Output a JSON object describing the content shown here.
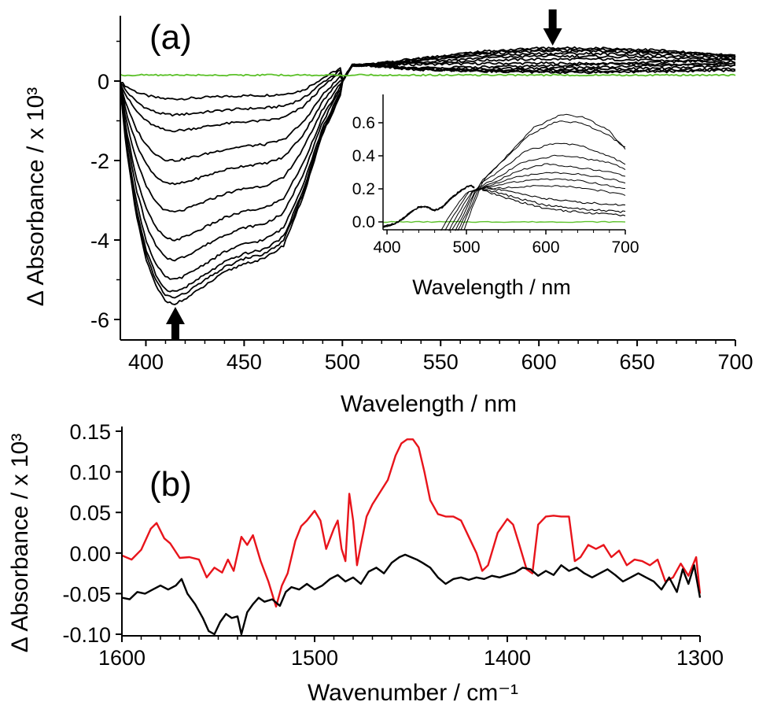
{
  "chart_data": [
    {
      "panel_label": "(a)",
      "type": "line",
      "xlabel": "Wavelength / nm",
      "ylabel": "Δ Absorbance / x 10³",
      "xlim": [
        387,
        700
      ],
      "ylim": [
        -6.5,
        1.1
      ],
      "xticks": [
        400,
        450,
        500,
        550,
        600,
        650,
        700
      ],
      "yticks": [
        0,
        -2,
        -4,
        -6
      ],
      "colors": {
        "traces": "#000000",
        "reference": "#5cc12a",
        "arrows": "#000000"
      },
      "annotations": [
        {
          "type": "arrow",
          "direction": "down",
          "x": 607,
          "meaning": "decrease"
        },
        {
          "type": "arrow",
          "direction": "up",
          "x": 415,
          "meaning": "recovery"
        }
      ],
      "trace_model": {
        "x": [
          387,
          390,
          395,
          400,
          405,
          410,
          415,
          420,
          430,
          440,
          450,
          460,
          470,
          480,
          490,
          500,
          510,
          520,
          540,
          560,
          580,
          600,
          620,
          640,
          660,
          680,
          700
        ],
        "unit_shape": [
          0.03,
          0.3,
          0.6,
          0.8,
          0.92,
          0.99,
          1.0,
          0.98,
          0.92,
          0.86,
          0.82,
          0.8,
          0.74,
          0.52,
          0.24,
          0.05,
          0.0,
          0.0,
          0.0,
          0.0,
          0.0,
          0.0,
          0.0,
          0.0,
          0.0,
          0.0,
          0.0
        ],
        "bleach_depths": [
          0.45,
          0.85,
          1.25,
          2.0,
          2.6,
          3.3,
          4.0,
          4.5,
          5.0,
          5.3,
          5.45,
          5.6
        ],
        "long_wavelength_x": [
          510,
          540,
          570,
          600,
          630,
          660,
          700
        ],
        "long_wavelength_levels": [
          [
            0.4,
            0.42,
            0.44,
            0.45,
            0.44,
            0.42,
            0.4
          ],
          [
            0.4,
            0.45,
            0.52,
            0.55,
            0.55,
            0.52,
            0.48
          ],
          [
            0.4,
            0.48,
            0.58,
            0.63,
            0.62,
            0.59,
            0.55
          ],
          [
            0.4,
            0.51,
            0.63,
            0.69,
            0.69,
            0.65,
            0.6
          ],
          [
            0.4,
            0.54,
            0.68,
            0.75,
            0.75,
            0.71,
            0.63
          ],
          [
            0.4,
            0.56,
            0.71,
            0.79,
            0.79,
            0.74,
            0.64
          ],
          [
            0.4,
            0.58,
            0.74,
            0.83,
            0.83,
            0.78,
            0.62
          ],
          [
            0.4,
            0.3,
            0.25,
            0.22,
            0.22,
            0.24,
            0.27
          ],
          [
            0.4,
            0.28,
            0.25,
            0.24,
            0.25,
            0.27,
            0.31
          ],
          [
            0.4,
            0.29,
            0.28,
            0.28,
            0.3,
            0.32,
            0.38
          ],
          [
            0.4,
            0.31,
            0.31,
            0.32,
            0.35,
            0.39,
            0.45
          ],
          [
            0.4,
            0.33,
            0.35,
            0.38,
            0.42,
            0.47,
            0.55
          ]
        ],
        "reference_level": 0.15
      },
      "inset": {
        "type": "line",
        "xlabel": "Wavelength / nm",
        "xlim": [
          395,
          700
        ],
        "ylim": [
          -0.06,
          0.72
        ],
        "xticks": [
          400,
          500,
          600,
          700
        ],
        "yticks": [
          0.0,
          0.2,
          0.4,
          0.6
        ],
        "series_base": {
          "x": [
            395,
            410,
            420,
            430,
            440,
            450,
            460,
            470,
            480,
            490,
            500,
            505,
            510
          ],
          "y": [
            -0.03,
            -0.01,
            0.02,
            0.06,
            0.09,
            0.09,
            0.07,
            0.09,
            0.14,
            0.18,
            0.21,
            0.22,
            0.21
          ]
        },
        "series_tails": [
          {
            "x": [
              520,
              560,
              600,
              640,
              700
            ],
            "y": [
              0.19,
              0.13,
              0.08,
              0.06,
              0.04
            ]
          },
          {
            "x": [
              520,
              560,
              600,
              640,
              700
            ],
            "y": [
              0.2,
              0.15,
              0.1,
              0.08,
              0.06
            ]
          },
          {
            "x": [
              520,
              560,
              600,
              640,
              700
            ],
            "y": [
              0.21,
              0.18,
              0.14,
              0.12,
              0.1
            ]
          }
        ],
        "rising_series": [
          {
            "x": [
              468,
              480,
              500,
              520,
              560,
              600,
              640,
              680,
              700
            ],
            "y": [
              -0.05,
              0.05,
              0.18,
              0.2,
              0.21,
              0.22,
              0.21,
              0.18,
              0.16
            ]
          },
          {
            "x": [
              473,
              485,
              503,
              525,
              560,
              600,
              640,
              680,
              700
            ],
            "y": [
              -0.05,
              0.05,
              0.18,
              0.21,
              0.24,
              0.26,
              0.25,
              0.22,
              0.2
            ]
          },
          {
            "x": [
              478,
              490,
              506,
              530,
              560,
              600,
              640,
              680,
              700
            ],
            "y": [
              -0.05,
              0.05,
              0.18,
              0.22,
              0.27,
              0.3,
              0.29,
              0.26,
              0.24
            ]
          },
          {
            "x": [
              482,
              494,
              509,
              535,
              565,
              600,
              640,
              680,
              700
            ],
            "y": [
              -0.05,
              0.05,
              0.19,
              0.24,
              0.31,
              0.35,
              0.33,
              0.3,
              0.28
            ]
          },
          {
            "x": [
              486,
              497,
              512,
              540,
              570,
              610,
              640,
              680,
              700
            ],
            "y": [
              -0.05,
              0.05,
              0.2,
              0.27,
              0.36,
              0.4,
              0.39,
              0.36,
              0.32
            ]
          },
          {
            "x": [
              489,
              500,
              515,
              545,
              575,
              615,
              645,
              680,
              700
            ],
            "y": [
              -0.05,
              0.05,
              0.22,
              0.32,
              0.43,
              0.48,
              0.46,
              0.4,
              0.35
            ]
          },
          {
            "x": [
              493,
              503,
              518,
              550,
              580,
              615,
              645,
              680,
              700
            ],
            "y": [
              -0.05,
              0.06,
              0.24,
              0.39,
              0.53,
              0.61,
              0.6,
              0.52,
              0.45
            ]
          },
          {
            "x": [
              497,
              506,
              521,
              555,
              585,
              620,
              650,
              680,
              700
            ],
            "y": [
              -0.05,
              0.07,
              0.25,
              0.42,
              0.57,
              0.65,
              0.63,
              0.55,
              0.44
            ]
          }
        ],
        "reference": {
          "x": [
            395,
            700
          ],
          "y": [
            0.0,
            0.0
          ]
        }
      }
    },
    {
      "panel_label": "(b)",
      "type": "line",
      "xlabel": "Wavenumber / cm⁻¹",
      "ylabel": "Δ Absorbance / x 10³",
      "xlim": [
        1600,
        1300
      ],
      "ylim": [
        -0.1,
        0.15
      ],
      "xticks": [
        1600,
        1500,
        1400,
        1300
      ],
      "yticks": [
        0.15,
        0.1,
        0.05,
        0.0,
        -0.05,
        -0.1
      ],
      "ytick_labels": [
        "0.15",
        "0.10",
        "0.05",
        "0.00",
        "-0.05",
        "-0.10"
      ],
      "series": [
        {
          "color": "#e8141b",
          "x": [
            1600,
            1595,
            1590,
            1585,
            1582,
            1578,
            1575,
            1570,
            1565,
            1560,
            1556,
            1552,
            1548,
            1545,
            1542,
            1538,
            1535,
            1532,
            1528,
            1524,
            1520,
            1517,
            1514,
            1510,
            1507,
            1504,
            1500,
            1497,
            1494,
            1490,
            1488,
            1486,
            1484,
            1482,
            1480,
            1478,
            1476,
            1473,
            1470,
            1466,
            1462,
            1458,
            1455,
            1452,
            1449,
            1446,
            1443,
            1440,
            1436,
            1432,
            1428,
            1424,
            1420,
            1416,
            1413,
            1410,
            1405,
            1400,
            1397,
            1394,
            1390,
            1387,
            1384,
            1380,
            1376,
            1372,
            1368,
            1365,
            1362,
            1358,
            1354,
            1350,
            1346,
            1342,
            1338,
            1334,
            1330,
            1326,
            1322,
            1318,
            1314,
            1310,
            1306,
            1302,
            1300
          ],
          "y": [
            -0.003,
            -0.008,
            0.004,
            0.03,
            0.037,
            0.018,
            0.012,
            -0.006,
            -0.005,
            -0.008,
            -0.03,
            -0.018,
            -0.024,
            -0.008,
            -0.022,
            0.02,
            0.01,
            0.022,
            -0.01,
            -0.035,
            -0.066,
            -0.04,
            -0.025,
            0.015,
            0.033,
            0.04,
            0.052,
            0.04,
            0.005,
            0.03,
            0.04,
            0.005,
            -0.01,
            0.073,
            0.04,
            -0.015,
            0.01,
            0.045,
            0.06,
            0.075,
            0.09,
            0.12,
            0.135,
            0.14,
            0.14,
            0.13,
            0.1,
            0.065,
            0.048,
            0.045,
            0.045,
            0.04,
            0.02,
            0.0,
            -0.022,
            -0.015,
            0.025,
            0.042,
            0.035,
            0.012,
            -0.02,
            -0.025,
            0.035,
            0.045,
            0.046,
            0.045,
            0.045,
            -0.01,
            -0.005,
            0.01,
            0.005,
            0.01,
            -0.005,
            0.003,
            -0.015,
            -0.008,
            -0.01,
            -0.015,
            -0.008,
            -0.035,
            -0.03,
            -0.013,
            -0.028,
            -0.005,
            -0.05
          ]
        },
        {
          "color": "#000000",
          "x": [
            1600,
            1596,
            1592,
            1588,
            1584,
            1580,
            1576,
            1572,
            1569,
            1566,
            1562,
            1558,
            1555,
            1552,
            1549,
            1546,
            1543,
            1540,
            1538,
            1535,
            1532,
            1529,
            1526,
            1522,
            1518,
            1515,
            1512,
            1508,
            1504,
            1500,
            1496,
            1492,
            1488,
            1484,
            1480,
            1476,
            1472,
            1468,
            1464,
            1460,
            1456,
            1453,
            1450,
            1447,
            1444,
            1440,
            1436,
            1432,
            1428,
            1424,
            1420,
            1416,
            1412,
            1408,
            1404,
            1400,
            1396,
            1392,
            1388,
            1384,
            1380,
            1376,
            1372,
            1368,
            1364,
            1360,
            1356,
            1352,
            1348,
            1344,
            1340,
            1336,
            1332,
            1328,
            1324,
            1320,
            1316,
            1312,
            1309,
            1306,
            1303,
            1300
          ],
          "y": [
            -0.055,
            -0.057,
            -0.048,
            -0.05,
            -0.045,
            -0.04,
            -0.045,
            -0.04,
            -0.032,
            -0.05,
            -0.063,
            -0.08,
            -0.096,
            -0.1,
            -0.085,
            -0.075,
            -0.08,
            -0.078,
            -0.1,
            -0.073,
            -0.063,
            -0.055,
            -0.06,
            -0.057,
            -0.065,
            -0.048,
            -0.042,
            -0.045,
            -0.038,
            -0.045,
            -0.04,
            -0.032,
            -0.027,
            -0.035,
            -0.03,
            -0.038,
            -0.023,
            -0.018,
            -0.025,
            -0.012,
            -0.005,
            -0.002,
            -0.005,
            -0.008,
            -0.012,
            -0.018,
            -0.03,
            -0.038,
            -0.032,
            -0.03,
            -0.033,
            -0.03,
            -0.032,
            -0.028,
            -0.03,
            -0.027,
            -0.024,
            -0.018,
            -0.02,
            -0.028,
            -0.022,
            -0.027,
            -0.015,
            -0.022,
            -0.018,
            -0.025,
            -0.03,
            -0.025,
            -0.02,
            -0.027,
            -0.035,
            -0.03,
            -0.025,
            -0.03,
            -0.035,
            -0.045,
            -0.03,
            -0.048,
            -0.02,
            -0.038,
            -0.015,
            -0.055
          ]
        }
      ]
    }
  ]
}
